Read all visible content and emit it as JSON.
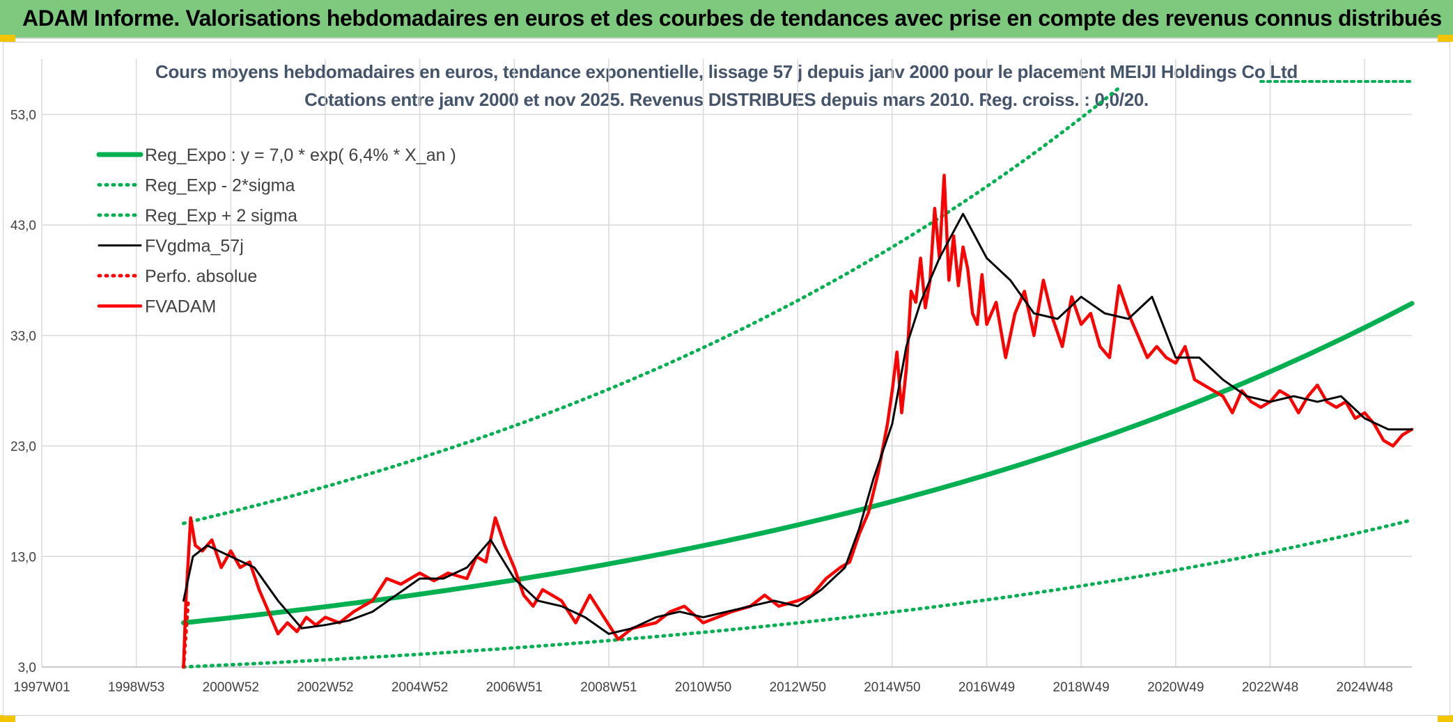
{
  "header": {
    "title": "ADAM Informe. Valorisations hebdomadaires en euros et des courbes de tendances avec prise en compte des revenus connus distribués"
  },
  "colors": {
    "banner": "#7dc97d",
    "green": "#00b050",
    "black": "#000000",
    "red": "#ff0000",
    "grid": "#d9d9d9",
    "text": "#404040",
    "title": "#44546a"
  },
  "chart_data": {
    "type": "line",
    "title": "Cours moyens hebdomadaires en euros, tendance exponentielle, lissage 57 j depuis janv 2000 pour le placement MEIJI Holdings Co Ltd",
    "subtitle": "Cotations entre janv 2000 et nov 2025. Revenus DISTRIBUES depuis mars 2010. Reg. croiss. : 0,0/20.",
    "xlabel": "",
    "ylabel": "",
    "x_axis_type": "time",
    "x_range": [
      1997.0,
      2026.0
    ],
    "xtick_labels": [
      "1997W01",
      "1998W53",
      "2000W52",
      "2002W52",
      "2004W52",
      "2006W51",
      "2008W51",
      "2010W50",
      "2012W50",
      "2014W50",
      "2016W49",
      "2018W49",
      "2020W49",
      "2022W48",
      "2024W48"
    ],
    "xtick_values": [
      1997.0,
      1999.0,
      2001.0,
      2003.0,
      2005.0,
      2007.0,
      2009.0,
      2011.0,
      2013.0,
      2015.0,
      2017.0,
      2019.0,
      2021.0,
      2023.0,
      2025.0
    ],
    "ylim": [
      3.0,
      58.0
    ],
    "ytick_labels": [
      "3,0",
      "13,0",
      "23,0",
      "33,0",
      "43,0",
      "53,0"
    ],
    "ytick_values": [
      3,
      13,
      23,
      33,
      43,
      53
    ],
    "grid": true,
    "legend_position": "top-left",
    "series": [
      {
        "name": "Reg_Expo : y = 7,0 * exp( 6,4% *  X_an )",
        "style": "solid-thick",
        "color": "#00b050",
        "x": [
          2000.0,
          2001.0,
          2002.0,
          2003.0,
          2004.0,
          2005.0,
          2006.0,
          2007.0,
          2008.0,
          2009.0,
          2010.0,
          2011.0,
          2012.0,
          2013.0,
          2014.0,
          2015.0,
          2016.0,
          2017.0,
          2018.0,
          2019.0,
          2020.0,
          2021.0,
          2022.0,
          2023.0,
          2024.0,
          2025.0,
          2026.0
        ],
        "y": [
          7.0,
          7.5,
          8.0,
          8.5,
          9.0,
          9.6,
          10.3,
          10.9,
          11.6,
          12.4,
          13.2,
          14.0,
          14.9,
          15.9,
          16.9,
          18.0,
          19.2,
          20.4,
          21.7,
          23.1,
          24.6,
          26.2,
          27.9,
          29.7,
          31.6,
          33.7,
          35.9
        ]
      },
      {
        "name": "Reg_Exp - 2*sigma",
        "style": "dotted",
        "color": "#00b050",
        "x": [
          2000.0,
          2002.0,
          2004.0,
          2006.0,
          2008.0,
          2010.0,
          2012.0,
          2014.0,
          2016.0,
          2018.0,
          2020.0,
          2022.0,
          2024.0,
          2026.0
        ],
        "y": [
          3.0,
          3.5,
          4.0,
          4.5,
          5.1,
          5.9,
          6.7,
          7.6,
          8.6,
          9.8,
          11.1,
          12.6,
          14.3,
          16.3
        ]
      },
      {
        "name": "Reg_Exp + 2 sigma",
        "style": "dotted",
        "color": "#00b050",
        "x": [
          2000.0,
          2001.0,
          2002.0,
          2003.0,
          2004.0,
          2005.0,
          2006.0,
          2007.0,
          2008.0,
          2009.0,
          2010.0,
          2011.0,
          2012.0,
          2013.0,
          2014.0,
          2015.0,
          2016.0,
          2017.0,
          2018.0,
          2019.0,
          2019.8
        ],
        "y": [
          16.0,
          17.0,
          18.1,
          19.3,
          20.6,
          21.9,
          23.3,
          24.8,
          26.4,
          28.1,
          30.0,
          31.9,
          34.0,
          36.2,
          38.5,
          41.0,
          43.7,
          46.5,
          49.5,
          52.7,
          55.4
        ]
      },
      {
        "name": "FVgdma_57j",
        "style": "solid",
        "color": "#000000",
        "x": [
          2000.0,
          2000.2,
          2000.5,
          2001.0,
          2001.5,
          2002.0,
          2002.5,
          2003.0,
          2003.5,
          2004.0,
          2004.5,
          2005.0,
          2005.5,
          2006.0,
          2006.5,
          2007.0,
          2007.5,
          2008.0,
          2008.5,
          2009.0,
          2009.5,
          2010.0,
          2010.5,
          2011.0,
          2011.5,
          2012.0,
          2012.5,
          2013.0,
          2013.5,
          2014.0,
          2014.3,
          2014.6,
          2015.0,
          2015.3,
          2015.6,
          2016.0,
          2016.5,
          2017.0,
          2017.5,
          2018.0,
          2018.5,
          2019.0,
          2019.5,
          2020.0,
          2020.5,
          2021.0,
          2021.5,
          2022.0,
          2022.5,
          2023.0,
          2023.5,
          2024.0,
          2024.5,
          2025.0,
          2025.5,
          2026.0
        ],
        "y": [
          9.0,
          13.0,
          14.0,
          13.0,
          12.0,
          9.0,
          6.5,
          6.8,
          7.2,
          8.0,
          9.5,
          11.0,
          11.0,
          12.0,
          14.5,
          11.0,
          9.0,
          8.5,
          7.5,
          6.0,
          6.5,
          7.5,
          8.0,
          7.5,
          8.0,
          8.5,
          9.0,
          8.5,
          10.0,
          12.0,
          15.5,
          20.0,
          25.0,
          32.0,
          36.0,
          40.0,
          44.0,
          40.0,
          38.0,
          35.0,
          34.5,
          36.5,
          35.0,
          34.5,
          36.5,
          31.0,
          31.0,
          29.0,
          27.5,
          27.0,
          27.5,
          27.0,
          27.5,
          25.5,
          24.5,
          24.5
        ]
      },
      {
        "name": "Perfo. absolue",
        "style": "dotted",
        "color": "#ff0000",
        "x": [
          2000.0,
          2000.1
        ],
        "y": [
          3.0,
          9.0
        ]
      },
      {
        "name": "FVADAM",
        "style": "solid-thick",
        "color": "#ff0000",
        "x": [
          2000.0,
          2000.05,
          2000.15,
          2000.25,
          2000.4,
          2000.6,
          2000.8,
          2001.0,
          2001.2,
          2001.4,
          2001.6,
          2001.8,
          2002.0,
          2002.2,
          2002.4,
          2002.6,
          2002.8,
          2003.0,
          2003.3,
          2003.6,
          2004.0,
          2004.3,
          2004.6,
          2005.0,
          2005.3,
          2005.6,
          2006.0,
          2006.2,
          2006.4,
          2006.6,
          2006.8,
          2007.0,
          2007.2,
          2007.4,
          2007.6,
          2008.0,
          2008.3,
          2008.6,
          2008.9,
          2009.2,
          2009.5,
          2009.8,
          2010.0,
          2010.3,
          2010.6,
          2011.0,
          2011.3,
          2011.6,
          2012.0,
          2012.3,
          2012.6,
          2013.0,
          2013.3,
          2013.6,
          2013.9,
          2014.1,
          2014.3,
          2014.5,
          2014.7,
          2014.9,
          2015.0,
          2015.1,
          2015.2,
          2015.3,
          2015.4,
          2015.5,
          2015.6,
          2015.7,
          2015.8,
          2015.9,
          2016.0,
          2016.1,
          2016.2,
          2016.3,
          2016.4,
          2016.5,
          2016.6,
          2016.7,
          2016.8,
          2016.9,
          2017.0,
          2017.2,
          2017.4,
          2017.6,
          2017.8,
          2018.0,
          2018.2,
          2018.4,
          2018.6,
          2018.8,
          2019.0,
          2019.2,
          2019.4,
          2019.6,
          2019.8,
          2020.0,
          2020.2,
          2020.4,
          2020.6,
          2020.8,
          2021.0,
          2021.2,
          2021.4,
          2021.6,
          2021.8,
          2022.0,
          2022.2,
          2022.4,
          2022.6,
          2022.8,
          2023.0,
          2023.2,
          2023.4,
          2023.6,
          2023.8,
          2024.0,
          2024.2,
          2024.4,
          2024.6,
          2024.8,
          2025.0,
          2025.2,
          2025.4,
          2025.6,
          2025.8,
          2026.0
        ],
        "y": [
          3.0,
          9.0,
          16.5,
          14.0,
          13.5,
          14.5,
          12.0,
          13.5,
          12.0,
          12.5,
          10.0,
          8.0,
          6.0,
          7.0,
          6.2,
          7.5,
          6.8,
          7.5,
          7.0,
          8.0,
          9.0,
          11.0,
          10.5,
          11.5,
          10.8,
          11.5,
          11.0,
          13.0,
          12.5,
          16.5,
          14.0,
          12.0,
          9.5,
          8.5,
          10.0,
          9.0,
          7.0,
          9.5,
          7.5,
          5.5,
          6.5,
          6.8,
          7.0,
          8.0,
          8.5,
          7.0,
          7.5,
          8.0,
          8.5,
          9.5,
          8.5,
          9.0,
          9.5,
          11.0,
          12.0,
          12.5,
          15.0,
          17.0,
          20.5,
          25.0,
          28.0,
          31.5,
          26.0,
          30.0,
          37.0,
          36.0,
          40.0,
          35.5,
          38.0,
          44.5,
          40.0,
          47.5,
          38.0,
          42.0,
          37.5,
          41.0,
          39.0,
          35.0,
          34.0,
          38.5,
          34.0,
          36.0,
          31.0,
          35.0,
          37.0,
          33.0,
          38.0,
          34.5,
          32.0,
          36.5,
          34.0,
          35.0,
          32.0,
          31.0,
          37.5,
          35.0,
          33.0,
          31.0,
          32.0,
          31.0,
          30.5,
          32.0,
          29.0,
          28.5,
          28.0,
          27.5,
          26.0,
          28.0,
          27.0,
          26.5,
          27.0,
          28.0,
          27.5,
          26.0,
          27.5,
          28.5,
          27.0,
          26.5,
          27.0,
          25.5,
          26.0,
          25.0,
          23.5,
          23.0,
          24.0,
          24.5
        ]
      }
    ]
  }
}
